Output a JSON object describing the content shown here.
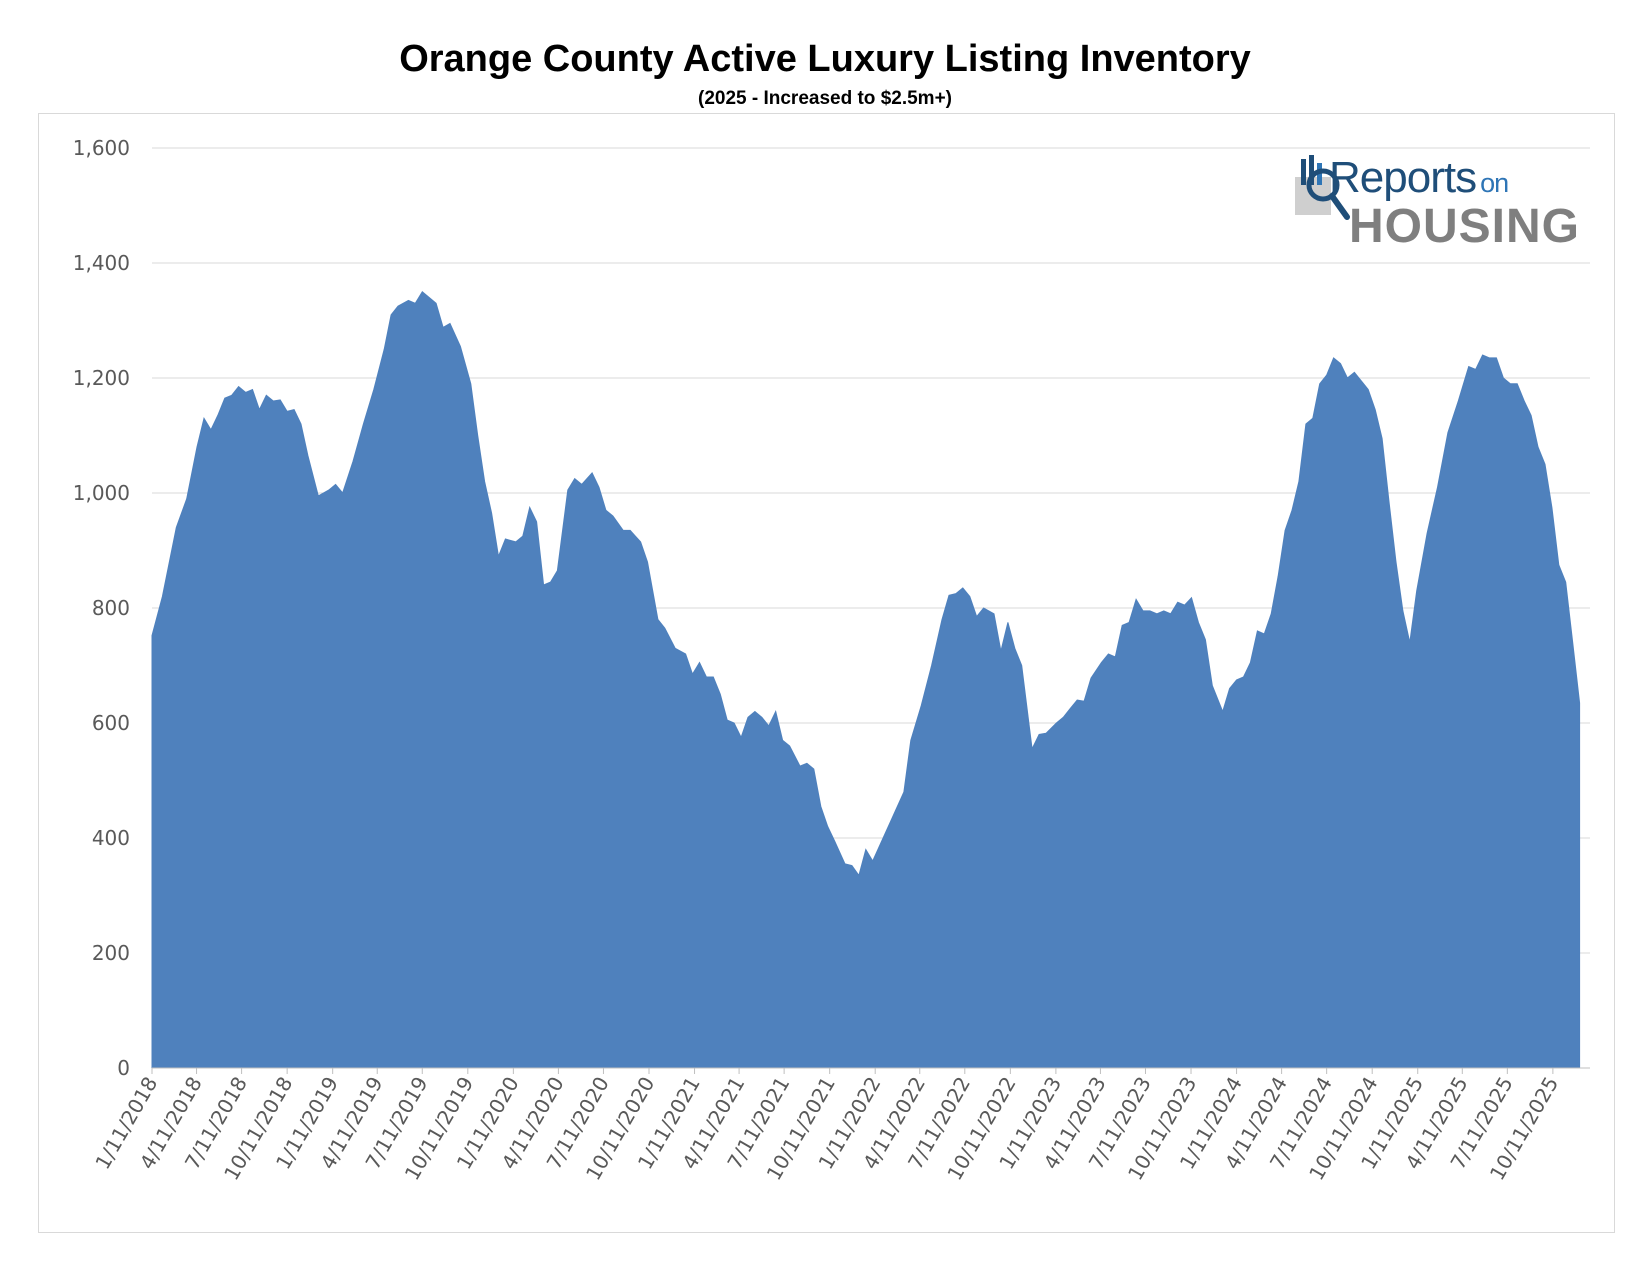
{
  "chart_data": {
    "type": "area",
    "title": "Orange County Active Luxury Listing Inventory",
    "subtitle": "(2025 - Increased to $2.5m+)",
    "xlabel": "",
    "ylabel": "",
    "ylim": [
      0,
      1600
    ],
    "yticks": [
      "0",
      "200",
      "400",
      "600",
      "800",
      "1,000",
      "1,200",
      "1,400",
      "1,600"
    ],
    "grid": true,
    "color": "#4f81bd",
    "x_range": [
      "2018-01-11",
      "2025-12-25"
    ],
    "xtick_labels": [
      "1/11/2018",
      "4/11/2018",
      "7/11/2018",
      "10/11/2018",
      "1/11/2019",
      "4/11/2019",
      "7/11/2019",
      "10/11/2019",
      "1/11/2020",
      "4/11/2020",
      "7/11/2020",
      "10/11/2020",
      "1/11/2021",
      "4/11/2021",
      "7/11/2021",
      "10/11/2021",
      "1/11/2022",
      "4/11/2022",
      "7/11/2022",
      "10/11/2022",
      "1/11/2023",
      "4/11/2023",
      "7/11/2023",
      "10/11/2023",
      "1/11/2024",
      "4/11/2024",
      "7/11/2024",
      "10/11/2024",
      "1/11/2025",
      "4/11/2025",
      "7/11/2025",
      "10/11/2025"
    ],
    "series": [
      {
        "points": [
          [
            "2018-01-11",
            752
          ],
          [
            "2018-02-01",
            820
          ],
          [
            "2018-03-01",
            940
          ],
          [
            "2018-03-22",
            990
          ],
          [
            "2018-04-12",
            1080
          ],
          [
            "2018-04-26",
            1130
          ],
          [
            "2018-05-10",
            1110
          ],
          [
            "2018-05-24",
            1135
          ],
          [
            "2018-06-07",
            1165
          ],
          [
            "2018-06-21",
            1170
          ],
          [
            "2018-07-05",
            1185
          ],
          [
            "2018-07-19",
            1175
          ],
          [
            "2018-08-02",
            1180
          ],
          [
            "2018-08-16",
            1145
          ],
          [
            "2018-08-30",
            1170
          ],
          [
            "2018-09-13",
            1160
          ],
          [
            "2018-09-27",
            1162
          ],
          [
            "2018-10-11",
            1142
          ],
          [
            "2018-10-25",
            1145
          ],
          [
            "2018-11-08",
            1120
          ],
          [
            "2018-11-22",
            1065
          ],
          [
            "2018-12-13",
            995
          ],
          [
            "2019-01-03",
            1005
          ],
          [
            "2019-01-17",
            1015
          ],
          [
            "2019-01-31",
            1000
          ],
          [
            "2019-02-21",
            1055
          ],
          [
            "2019-03-14",
            1120
          ],
          [
            "2019-04-04",
            1180
          ],
          [
            "2019-04-25",
            1250
          ],
          [
            "2019-05-09",
            1310
          ],
          [
            "2019-05-23",
            1325
          ],
          [
            "2019-06-13",
            1335
          ],
          [
            "2019-06-27",
            1330
          ],
          [
            "2019-07-11",
            1350
          ],
          [
            "2019-07-25",
            1340
          ],
          [
            "2019-08-08",
            1330
          ],
          [
            "2019-08-22",
            1288
          ],
          [
            "2019-09-05",
            1295
          ],
          [
            "2019-09-26",
            1255
          ],
          [
            "2019-10-17",
            1190
          ],
          [
            "2019-10-31",
            1100
          ],
          [
            "2019-11-14",
            1020
          ],
          [
            "2019-11-28",
            965
          ],
          [
            "2019-12-12",
            890
          ],
          [
            "2019-12-26",
            920
          ],
          [
            "2020-01-16",
            915
          ],
          [
            "2020-01-30",
            925
          ],
          [
            "2020-02-13",
            975
          ],
          [
            "2020-02-27",
            950
          ],
          [
            "2020-03-12",
            840
          ],
          [
            "2020-03-26",
            845
          ],
          [
            "2020-04-09",
            865
          ],
          [
            "2020-04-30",
            1005
          ],
          [
            "2020-05-14",
            1025
          ],
          [
            "2020-05-28",
            1015
          ],
          [
            "2020-06-18",
            1035
          ],
          [
            "2020-07-02",
            1010
          ],
          [
            "2020-07-16",
            970
          ],
          [
            "2020-07-30",
            960
          ],
          [
            "2020-08-20",
            935
          ],
          [
            "2020-09-03",
            935
          ],
          [
            "2020-09-24",
            915
          ],
          [
            "2020-10-08",
            880
          ],
          [
            "2020-10-29",
            780
          ],
          [
            "2020-11-12",
            765
          ],
          [
            "2020-12-03",
            730
          ],
          [
            "2020-12-24",
            720
          ],
          [
            "2021-01-07",
            685
          ],
          [
            "2021-01-21",
            705
          ],
          [
            "2021-02-04",
            680
          ],
          [
            "2021-02-18",
            680
          ],
          [
            "2021-03-04",
            650
          ],
          [
            "2021-03-18",
            605
          ],
          [
            "2021-04-01",
            600
          ],
          [
            "2021-04-15",
            575
          ],
          [
            "2021-04-29",
            610
          ],
          [
            "2021-05-13",
            620
          ],
          [
            "2021-05-27",
            610
          ],
          [
            "2021-06-10",
            595
          ],
          [
            "2021-06-24",
            620
          ],
          [
            "2021-07-08",
            570
          ],
          [
            "2021-07-22",
            560
          ],
          [
            "2021-08-12",
            525
          ],
          [
            "2021-08-26",
            530
          ],
          [
            "2021-09-09",
            520
          ],
          [
            "2021-09-23",
            455
          ],
          [
            "2021-10-07",
            420
          ],
          [
            "2021-10-21",
            395
          ],
          [
            "2021-11-11",
            355
          ],
          [
            "2021-11-25",
            352
          ],
          [
            "2021-12-09",
            335
          ],
          [
            "2021-12-23",
            380
          ],
          [
            "2022-01-06",
            360
          ],
          [
            "2022-01-27",
            400
          ],
          [
            "2022-02-17",
            440
          ],
          [
            "2022-03-10",
            480
          ],
          [
            "2022-03-24",
            570
          ],
          [
            "2022-04-14",
            630
          ],
          [
            "2022-05-05",
            700
          ],
          [
            "2022-05-26",
            780
          ],
          [
            "2022-06-09",
            822
          ],
          [
            "2022-06-23",
            825
          ],
          [
            "2022-07-07",
            835
          ],
          [
            "2022-07-21",
            820
          ],
          [
            "2022-08-04",
            785
          ],
          [
            "2022-08-18",
            800
          ],
          [
            "2022-09-08",
            790
          ],
          [
            "2022-09-22",
            725
          ],
          [
            "2022-10-06",
            775
          ],
          [
            "2022-10-20",
            730
          ],
          [
            "2022-11-03",
            700
          ],
          [
            "2022-11-24",
            555
          ],
          [
            "2022-12-08",
            580
          ],
          [
            "2022-12-22",
            582
          ],
          [
            "2023-01-12",
            600
          ],
          [
            "2023-01-26",
            610
          ],
          [
            "2023-02-09",
            625
          ],
          [
            "2023-02-23",
            640
          ],
          [
            "2023-03-09",
            638
          ],
          [
            "2023-03-23",
            678
          ],
          [
            "2023-04-13",
            705
          ],
          [
            "2023-04-27",
            720
          ],
          [
            "2023-05-11",
            715
          ],
          [
            "2023-05-25",
            770
          ],
          [
            "2023-06-08",
            775
          ],
          [
            "2023-06-22",
            815
          ],
          [
            "2023-07-06",
            795
          ],
          [
            "2023-07-20",
            795
          ],
          [
            "2023-08-03",
            790
          ],
          [
            "2023-08-17",
            795
          ],
          [
            "2023-08-31",
            790
          ],
          [
            "2023-09-14",
            810
          ],
          [
            "2023-09-28",
            805
          ],
          [
            "2023-10-12",
            818
          ],
          [
            "2023-10-26",
            775
          ],
          [
            "2023-11-09",
            745
          ],
          [
            "2023-11-23",
            665
          ],
          [
            "2023-12-14",
            620
          ],
          [
            "2023-12-28",
            660
          ],
          [
            "2024-01-11",
            675
          ],
          [
            "2024-01-25",
            680
          ],
          [
            "2024-02-08",
            705
          ],
          [
            "2024-02-22",
            760
          ],
          [
            "2024-03-07",
            755
          ],
          [
            "2024-03-21",
            790
          ],
          [
            "2024-04-04",
            855
          ],
          [
            "2024-04-18",
            935
          ],
          [
            "2024-05-02",
            970
          ],
          [
            "2024-05-16",
            1020
          ],
          [
            "2024-05-30",
            1120
          ],
          [
            "2024-06-13",
            1130
          ],
          [
            "2024-06-27",
            1190
          ],
          [
            "2024-07-11",
            1205
          ],
          [
            "2024-07-25",
            1235
          ],
          [
            "2024-08-08",
            1225
          ],
          [
            "2024-08-22",
            1200
          ],
          [
            "2024-09-05",
            1210
          ],
          [
            "2024-09-19",
            1195
          ],
          [
            "2024-10-03",
            1180
          ],
          [
            "2024-10-17",
            1145
          ],
          [
            "2024-10-31",
            1095
          ],
          [
            "2024-11-14",
            985
          ],
          [
            "2024-11-28",
            880
          ],
          [
            "2024-12-12",
            795
          ],
          [
            "2024-12-26",
            740
          ],
          [
            "2025-01-09",
            830
          ],
          [
            "2025-01-30",
            930
          ],
          [
            "2025-02-20",
            1010
          ],
          [
            "2025-03-13",
            1105
          ],
          [
            "2025-04-03",
            1160
          ],
          [
            "2025-04-24",
            1220
          ],
          [
            "2025-05-08",
            1215
          ],
          [
            "2025-05-22",
            1240
          ],
          [
            "2025-06-05",
            1235
          ],
          [
            "2025-06-19",
            1235
          ],
          [
            "2025-07-03",
            1200
          ],
          [
            "2025-07-17",
            1190
          ],
          [
            "2025-07-31",
            1190
          ],
          [
            "2025-08-14",
            1160
          ],
          [
            "2025-08-28",
            1135
          ],
          [
            "2025-09-11",
            1080
          ],
          [
            "2025-09-25",
            1050
          ],
          [
            "2025-10-09",
            975
          ],
          [
            "2025-10-23",
            875
          ],
          [
            "2025-11-06",
            845
          ],
          [
            "2025-11-20",
            740
          ],
          [
            "2025-12-04",
            635
          ]
        ]
      }
    ]
  },
  "logo": {
    "line1": "Reports",
    "line1_small": "on",
    "line2": "HOUSING"
  }
}
